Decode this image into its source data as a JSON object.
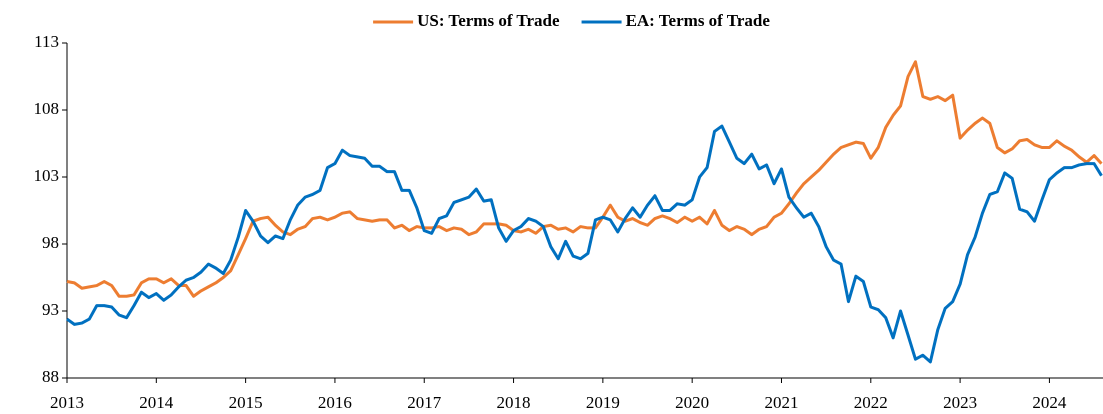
{
  "chart_data": {
    "type": "line",
    "legend": "top",
    "xlim": [
      2013,
      2024.6
    ],
    "xticks": [
      2013,
      2014,
      2015,
      2016,
      2017,
      2018,
      2019,
      2020,
      2021,
      2022,
      2023,
      2024
    ],
    "ylim": [
      88,
      113
    ],
    "yticks": [
      88,
      93,
      98,
      103,
      108,
      113
    ],
    "grid": false,
    "x": [
      2013,
      2013.083,
      2013.167,
      2013.25,
      2013.333,
      2013.417,
      2013.5,
      2013.583,
      2013.667,
      2013.75,
      2013.833,
      2013.917,
      2014,
      2014.083,
      2014.167,
      2014.25,
      2014.333,
      2014.417,
      2014.5,
      2014.583,
      2014.667,
      2014.75,
      2014.833,
      2014.917,
      2015,
      2015.083,
      2015.167,
      2015.25,
      2015.333,
      2015.417,
      2015.5,
      2015.583,
      2015.667,
      2015.75,
      2015.833,
      2015.917,
      2016,
      2016.083,
      2016.167,
      2016.25,
      2016.333,
      2016.417,
      2016.5,
      2016.583,
      2016.667,
      2016.75,
      2016.833,
      2016.917,
      2017,
      2017.083,
      2017.167,
      2017.25,
      2017.333,
      2017.417,
      2017.5,
      2017.583,
      2017.667,
      2017.75,
      2017.833,
      2017.917,
      2018,
      2018.083,
      2018.167,
      2018.25,
      2018.333,
      2018.417,
      2018.5,
      2018.583,
      2018.667,
      2018.75,
      2018.833,
      2018.917,
      2019,
      2019.083,
      2019.167,
      2019.25,
      2019.333,
      2019.417,
      2019.5,
      2019.583,
      2019.667,
      2019.75,
      2019.833,
      2019.917,
      2020,
      2020.083,
      2020.167,
      2020.25,
      2020.333,
      2020.417,
      2020.5,
      2020.583,
      2020.667,
      2020.75,
      2020.833,
      2020.917,
      2021,
      2021.083,
      2021.167,
      2021.25,
      2021.333,
      2021.417,
      2021.5,
      2021.583,
      2021.667,
      2021.75,
      2021.833,
      2021.917,
      2022,
      2022.083,
      2022.167,
      2022.25,
      2022.333,
      2022.417,
      2022.5,
      2022.583,
      2022.667,
      2022.75,
      2022.833,
      2022.917,
      2023,
      2023.083,
      2023.167,
      2023.25,
      2023.333,
      2023.417,
      2023.5,
      2023.583,
      2023.667,
      2023.75,
      2023.833,
      2023.917,
      2024,
      2024.083,
      2024.167,
      2024.25,
      2024.333,
      2024.417,
      2024.5,
      2024.583
    ],
    "series": [
      {
        "name": "US: Terms of Trade",
        "color": "#ed7d31",
        "values": [
          95.2,
          95.1,
          94.7,
          94.8,
          94.9,
          95.2,
          94.9,
          94.1,
          94.1,
          94.2,
          95.1,
          95.4,
          95.4,
          95.1,
          95.4,
          94.9,
          94.9,
          94.1,
          94.5,
          94.8,
          95.1,
          95.5,
          96.0,
          97.2,
          98.4,
          99.7,
          99.9,
          100.0,
          99.4,
          98.9,
          98.7,
          99.1,
          99.3,
          99.9,
          100.0,
          99.8,
          100.0,
          100.3,
          100.4,
          99.9,
          99.8,
          99.7,
          99.8,
          99.8,
          99.2,
          99.4,
          99.0,
          99.3,
          99.2,
          99.2,
          99.3,
          99.0,
          99.2,
          99.1,
          98.7,
          98.9,
          99.5,
          99.5,
          99.5,
          99.4,
          99.0,
          98.9,
          99.1,
          98.8,
          99.3,
          99.4,
          99.1,
          99.2,
          98.9,
          99.3,
          99.2,
          99.2,
          100.0,
          100.9,
          100.0,
          99.7,
          99.9,
          99.6,
          99.4,
          99.9,
          100.1,
          99.9,
          99.6,
          100.0,
          99.7,
          100.0,
          99.5,
          100.5,
          99.4,
          99.0,
          99.3,
          99.1,
          98.7,
          99.1,
          99.3,
          100.0,
          100.3,
          101.0,
          101.8,
          102.5,
          103.0,
          103.5,
          104.1,
          104.7,
          105.2,
          105.4,
          105.6,
          105.5,
          104.4,
          105.2,
          106.7,
          107.6,
          108.3,
          110.5,
          111.6,
          109.0,
          108.8,
          109.0,
          108.7,
          109.1,
          105.9,
          106.5,
          107.0,
          107.4,
          107.0,
          105.2,
          104.8,
          105.1,
          105.7,
          105.8,
          105.4,
          105.2,
          105.2,
          105.7,
          105.3,
          105.0,
          104.5,
          104.1,
          104.6,
          104.0
        ]
      },
      {
        "name": "EA: Terms of Trade",
        "color": "#0070c0",
        "values": [
          92.4,
          92.0,
          92.1,
          92.4,
          93.4,
          93.4,
          93.3,
          92.7,
          92.5,
          93.4,
          94.4,
          94.0,
          94.3,
          93.8,
          94.2,
          94.8,
          95.3,
          95.5,
          95.9,
          96.5,
          96.2,
          95.8,
          96.8,
          98.5,
          100.5,
          99.7,
          98.6,
          98.1,
          98.6,
          98.4,
          99.8,
          100.9,
          101.5,
          101.7,
          102.0,
          103.7,
          104.0,
          105.0,
          104.6,
          104.5,
          104.4,
          103.8,
          103.8,
          103.4,
          103.4,
          102.0,
          102.0,
          100.7,
          99.0,
          98.8,
          99.9,
          100.1,
          101.1,
          101.3,
          101.5,
          102.1,
          101.2,
          101.3,
          99.2,
          98.2,
          99.0,
          99.3,
          99.9,
          99.7,
          99.3,
          97.8,
          96.9,
          98.2,
          97.1,
          96.9,
          97.3,
          99.8,
          100.0,
          99.8,
          98.9,
          99.9,
          100.7,
          100.0,
          100.9,
          101.6,
          100.5,
          100.5,
          101.0,
          100.9,
          101.3,
          103.0,
          103.7,
          106.4,
          106.8,
          105.6,
          104.4,
          104.0,
          104.7,
          103.6,
          103.9,
          102.5,
          103.6,
          101.5,
          100.7,
          100.0,
          100.3,
          99.3,
          97.8,
          96.8,
          96.5,
          93.7,
          95.6,
          95.2,
          93.3,
          93.1,
          92.5,
          91.0,
          93.0,
          91.2,
          89.4,
          89.7,
          89.2,
          91.6,
          93.2,
          93.7,
          95.0,
          97.2,
          98.5,
          100.3,
          101.7,
          101.9,
          103.3,
          102.9,
          100.6,
          100.4,
          99.7,
          101.3,
          102.8,
          103.3,
          103.7,
          103.7,
          103.9,
          104.0,
          104.0,
          103.1
        ]
      }
    ]
  }
}
